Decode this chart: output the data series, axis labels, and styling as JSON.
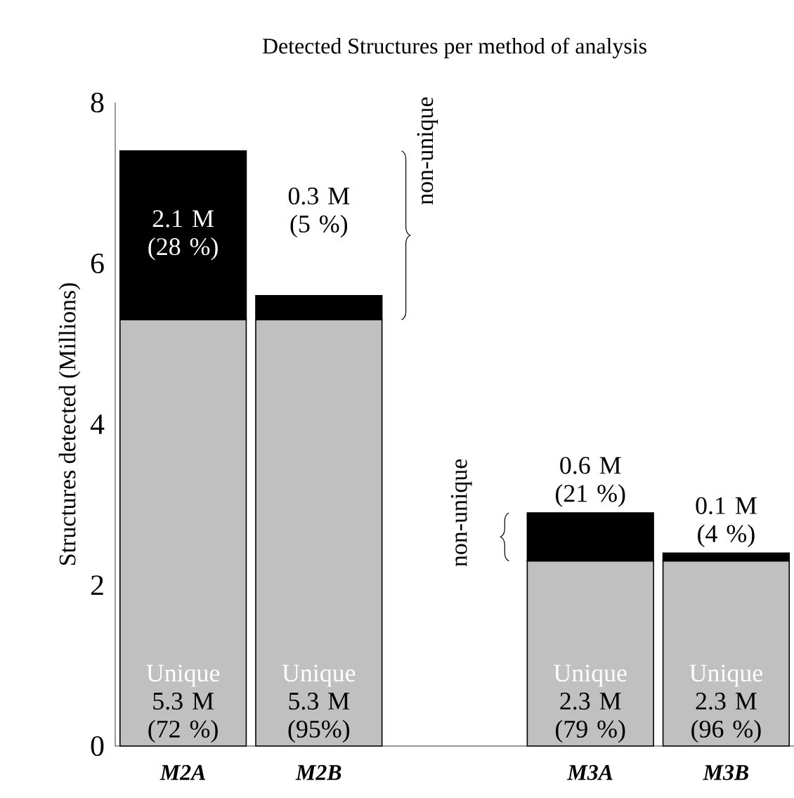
{
  "chart_data": {
    "type": "bar",
    "stacked": true,
    "title": "Detected Structures per method of analysis",
    "ylabel": "Structures detected (Millions)",
    "categories": [
      "M2A",
      "M2B",
      null,
      "M3A",
      "M3B"
    ],
    "series": [
      {
        "name": "Unique",
        "color": "#c0c0c0",
        "values": [
          5.3,
          5.3,
          null,
          2.3,
          2.3
        ],
        "value_labels": [
          "5.3 M (72 %)",
          "5.3 M (95%)",
          null,
          "2.3 M (79 %)",
          "2.3 M (96 %)"
        ]
      },
      {
        "color": "#000000",
        "values": [
          2.1,
          0.3,
          null,
          0.6,
          0.1
        ],
        "value_labels": [
          "2.1 M (28 %)",
          "0.3 M (5 %)",
          null,
          "0.6 M (21 %)",
          "0.1 M (4 %)"
        ]
      }
    ],
    "ylim": [
      0,
      8
    ],
    "yticks": [
      0,
      2,
      4,
      6,
      8
    ],
    "grid": false,
    "annotations": [
      "non-unique",
      "non-unique"
    ]
  }
}
